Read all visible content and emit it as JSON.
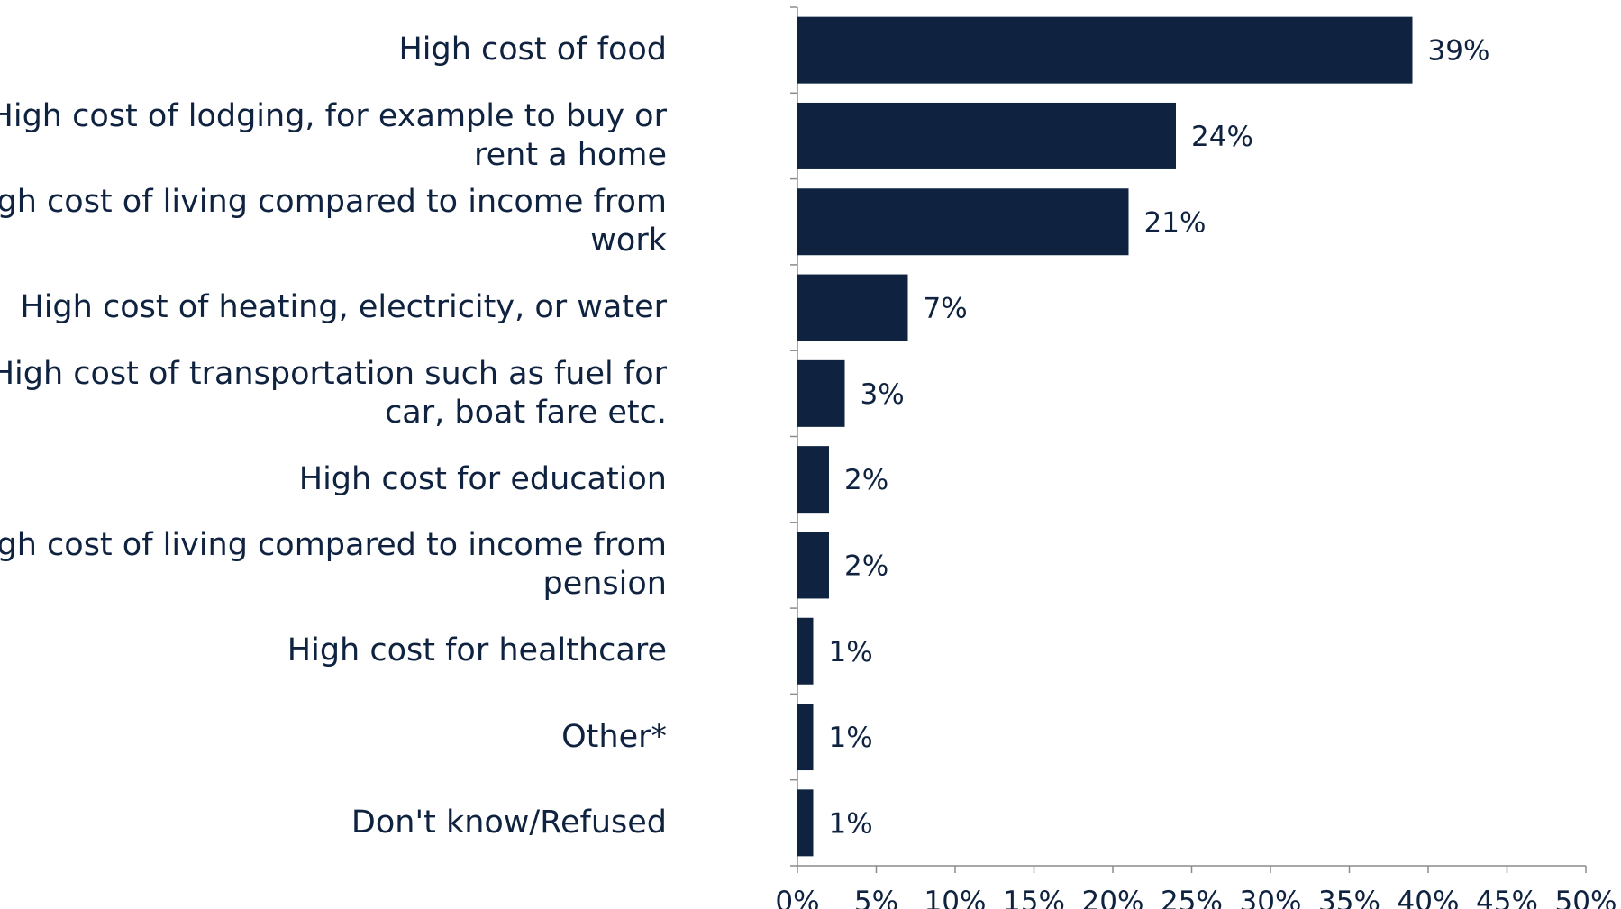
{
  "chart_data": {
    "type": "bar",
    "orientation": "horizontal",
    "categories": [
      "High cost of food",
      "High cost of lodging, for example to buy or rent a home",
      "High cost of living compared to income from work",
      "High cost of heating, electricity, or water",
      "High cost of transportation such as fuel for car, boat fare etc.",
      "High cost for education",
      "High cost of living compared to income from pension",
      "High cost for healthcare",
      "Other*",
      "Don't know/Refused"
    ],
    "values": [
      39,
      24,
      21,
      7,
      3,
      2,
      2,
      1,
      1,
      1
    ],
    "value_labels": [
      "39%",
      "24%",
      "21%",
      "7%",
      "3%",
      "2%",
      "2%",
      "1%",
      "1%",
      "1%"
    ],
    "xlim": [
      0,
      50
    ],
    "x_ticks": [
      0,
      5,
      10,
      15,
      20,
      25,
      30,
      35,
      40,
      45,
      50
    ],
    "x_tick_labels": [
      "0%",
      "5%",
      "10%",
      "15%",
      "20%",
      "25%",
      "30%",
      "35%",
      "40%",
      "45%",
      "50%"
    ],
    "bar_color": "#0f2340",
    "grid": false,
    "legend": "none"
  }
}
